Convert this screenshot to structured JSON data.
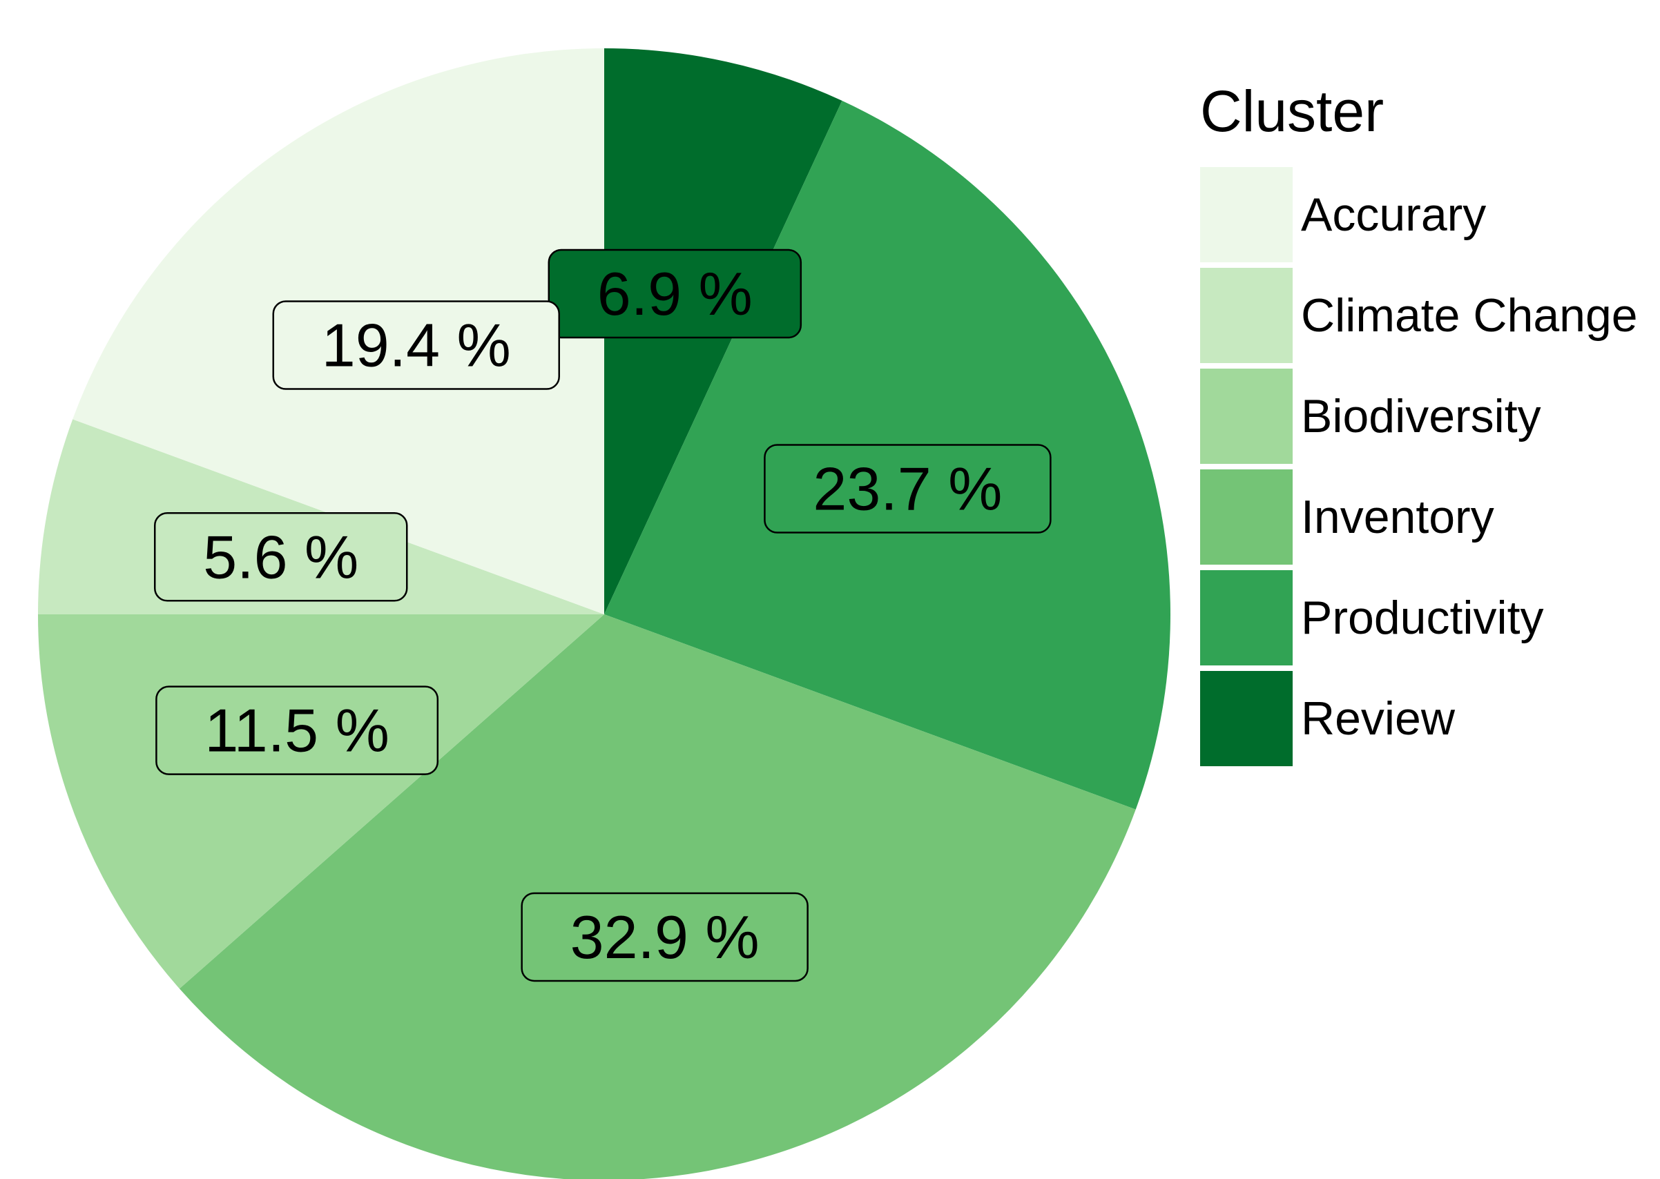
{
  "chart_data": {
    "type": "pie",
    "legend_title": "Cluster",
    "legend_position": "right",
    "start_angle": "12 o'clock",
    "direction": "clockwise",
    "slices": [
      {
        "name": "Review",
        "value": 6.9,
        "label": "6.9 %",
        "color": "#006d2c"
      },
      {
        "name": "Productivity",
        "value": 23.7,
        "label": "23.7 %",
        "color": "#31a354"
      },
      {
        "name": "Inventory",
        "value": 32.9,
        "label": "32.9 %",
        "color": "#74c476"
      },
      {
        "name": "Biodiversity",
        "value": 11.5,
        "label": "11.5 %",
        "color": "#a1d99b"
      },
      {
        "name": "Climate Change",
        "value": 5.6,
        "label": "5.6 %",
        "color": "#c7e9c0"
      },
      {
        "name": "Accurary",
        "value": 19.4,
        "label": "19.4 %",
        "color": "#edf8e9"
      }
    ],
    "legend_order": [
      "Accurary",
      "Climate Change",
      "Biodiversity",
      "Inventory",
      "Productivity",
      "Review"
    ]
  }
}
